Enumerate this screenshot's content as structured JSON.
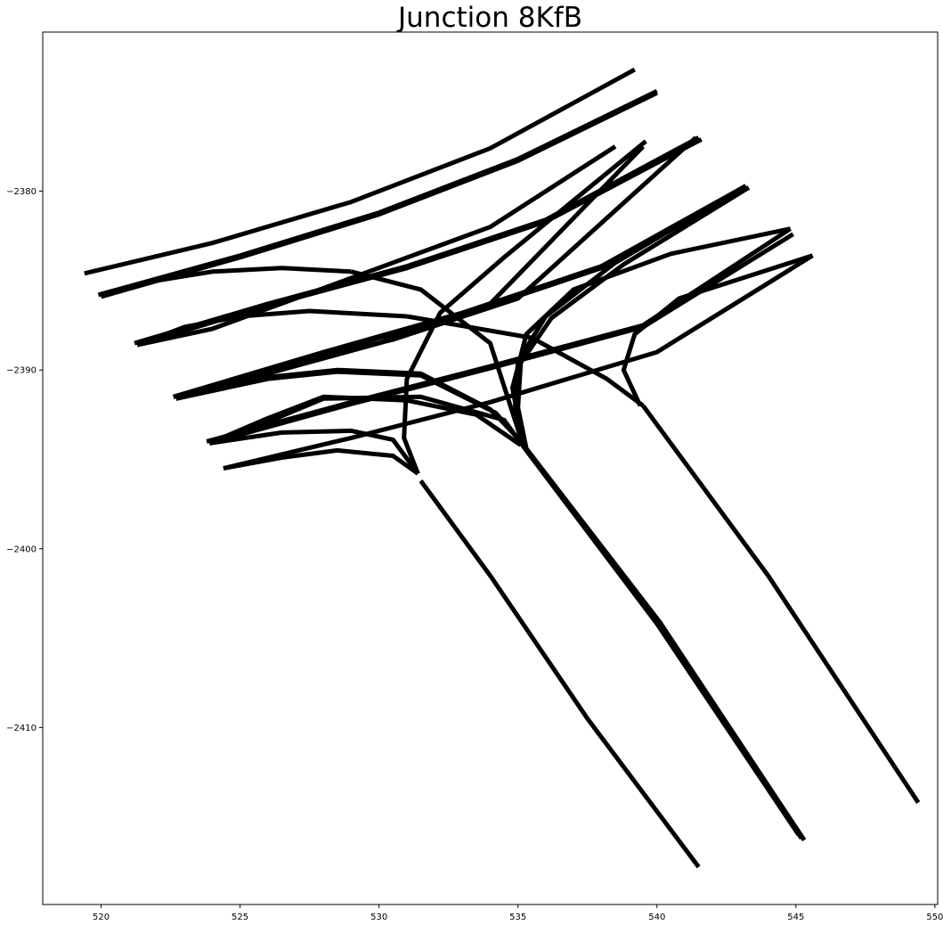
{
  "chart_data": {
    "type": "line",
    "title": "Junction 8KfB",
    "xlabel": "",
    "ylabel": "",
    "xlim": [
      517.9,
      550.1
    ],
    "ylim": [
      -2419.9,
      -2371.1
    ],
    "grid": false,
    "line_color": "#000000",
    "x_ticks": [
      520,
      525,
      530,
      535,
      540,
      545,
      550
    ],
    "x_tick_labels": [
      "520",
      "525",
      "530",
      "535",
      "540",
      "545",
      "550"
    ],
    "y_ticks": [
      -2380,
      -2390,
      -2400,
      -2410
    ],
    "y_tick_labels": [
      "−2380",
      "−2390",
      "−2400",
      "−2410"
    ],
    "series": [
      {
        "x": [
          519.4,
          524.0,
          529.0,
          534.0,
          539.2
        ],
        "y": [
          -2384.6,
          -2382.9,
          -2380.6,
          -2377.6,
          -2373.2
        ]
      },
      {
        "x": [
          519.9,
          525.0,
          530.0,
          535.0,
          540.0
        ],
        "y": [
          -2385.8,
          -2383.6,
          -2381.2,
          -2378.2,
          -2374.4
        ]
      },
      {
        "x": [
          520.0,
          525.0,
          530.0,
          535.0,
          540.0
        ],
        "y": [
          -2385.9,
          -2383.7,
          -2381.3,
          -2378.3,
          -2374.5
        ]
      },
      {
        "x": [
          520.0,
          522.0,
          524.0,
          526.5,
          529.0
        ],
        "y": [
          -2385.9,
          -2385.0,
          -2384.5,
          -2384.3,
          -2384.5
        ]
      },
      {
        "x": [
          529.0,
          531.5,
          534.0,
          535.2
        ],
        "y": [
          -2384.5,
          -2385.5,
          -2388.5,
          -2394.3
        ]
      },
      {
        "x": [
          521.2,
          526.0,
          531.0,
          536.0,
          541.5
        ],
        "y": [
          -2388.5,
          -2386.3,
          -2384.2,
          -2381.6,
          -2377.0
        ]
      },
      {
        "x": [
          521.3,
          526.0,
          531.0,
          536.0,
          541.6
        ],
        "y": [
          -2388.6,
          -2386.4,
          -2384.3,
          -2381.7,
          -2377.1
        ]
      },
      {
        "x": [
          521.3,
          524.0,
          527.0,
          530.5,
          534.0,
          538.5
        ],
        "y": [
          -2388.6,
          -2387.7,
          -2386.0,
          -2384.0,
          -2382.0,
          -2377.5
        ]
      },
      {
        "x": [
          521.3,
          523.0,
          525.0,
          527.5,
          531.0
        ],
        "y": [
          -2388.6,
          -2387.6,
          -2387.0,
          -2386.7,
          -2387.0
        ]
      },
      {
        "x": [
          531.0,
          535.5,
          538.2,
          539.5
        ],
        "y": [
          -2387.0,
          -2388.2,
          -2390.5,
          -2392.0
        ]
      },
      {
        "x": [
          522.6,
          528.0,
          533.0,
          538.0,
          543.2
        ],
        "y": [
          -2391.5,
          -2389.0,
          -2386.8,
          -2384.2,
          -2379.7
        ]
      },
      {
        "x": [
          522.7,
          528.0,
          533.0,
          538.0,
          543.3
        ],
        "y": [
          -2391.6,
          -2389.1,
          -2386.9,
          -2384.3,
          -2379.8
        ]
      },
      {
        "x": [
          522.7,
          526.0,
          530.0,
          534.0,
          539.5
        ],
        "y": [
          -2391.6,
          -2390.2,
          -2388.5,
          -2386.3,
          -2377.5
        ]
      },
      {
        "x": [
          522.6,
          526.0,
          530.5,
          535.0,
          541.4
        ],
        "y": [
          -2391.5,
          -2390.0,
          -2388.3,
          -2386.0,
          -2377.0
        ]
      },
      {
        "x": [
          523.8,
          529.0,
          534.0,
          539.5,
          544.8
        ],
        "y": [
          -2394.0,
          -2391.8,
          -2389.8,
          -2387.5,
          -2382.1
        ]
      },
      {
        "x": [
          523.9,
          529.0,
          534.0,
          539.5,
          544.9
        ],
        "y": [
          -2394.1,
          -2391.9,
          -2389.9,
          -2387.6,
          -2382.4
        ]
      },
      {
        "x": [
          523.9,
          526.0,
          528.0,
          531.0,
          533.5,
          535.1
        ],
        "y": [
          -2394.1,
          -2392.7,
          -2391.5,
          -2391.7,
          -2392.5,
          -2394.2
        ]
      },
      {
        "x": [
          523.9,
          526.0,
          528.0,
          531.5,
          534.5,
          535.2
        ],
        "y": [
          -2394.1,
          -2392.9,
          -2391.6,
          -2391.5,
          -2392.8,
          -2394.3
        ]
      },
      {
        "x": [
          522.7,
          526.0,
          528.5,
          531.5,
          534.0,
          535.3
        ],
        "y": [
          -2391.6,
          -2390.4,
          -2390.0,
          -2390.2,
          -2392.2,
          -2394.3
        ]
      },
      {
        "x": [
          522.7,
          526.0,
          528.5,
          531.5,
          534.2,
          535.3
        ],
        "y": [
          -2391.6,
          -2390.5,
          -2390.1,
          -2390.3,
          -2392.4,
          -2394.4
        ]
      },
      {
        "x": [
          524.4,
          529.0,
          534.0,
          540.0,
          545.6
        ],
        "y": [
          -2395.5,
          -2393.8,
          -2391.8,
          -2389.0,
          -2383.6
        ]
      },
      {
        "x": [
          524.4,
          526.5,
          528.5,
          530.5,
          531.4
        ],
        "y": [
          -2395.5,
          -2394.9,
          -2394.5,
          -2394.8,
          -2395.8
        ]
      },
      {
        "x": [
          523.9,
          526.5,
          529.0,
          530.5,
          531.4
        ],
        "y": [
          -2394.1,
          -2393.5,
          -2393.4,
          -2393.9,
          -2395.8
        ]
      },
      {
        "x": [
          531.4,
          530.9,
          531.0,
          532.2,
          534.5,
          539.6
        ],
        "y": [
          -2395.8,
          -2393.8,
          -2390.5,
          -2386.8,
          -2383.7,
          -2377.2
        ]
      },
      {
        "x": [
          531.5,
          534.0,
          537.5,
          541.5
        ],
        "y": [
          -2396.2,
          -2401.5,
          -2409.5,
          -2417.8
        ]
      },
      {
        "x": [
          535.2,
          534.9,
          535.0,
          536.0,
          538.5,
          543.2
        ],
        "y": [
          -2394.3,
          -2392.0,
          -2389.5,
          -2387.0,
          -2384.0,
          -2379.7
        ]
      },
      {
        "x": [
          535.3,
          535.0,
          535.1,
          536.2,
          538.8,
          543.3
        ],
        "y": [
          -2394.4,
          -2392.1,
          -2389.6,
          -2387.1,
          -2384.1,
          -2379.8
        ]
      },
      {
        "x": [
          535.2,
          534.8,
          535.3,
          537.0,
          540.5,
          544.8
        ],
        "y": [
          -2394.3,
          -2391.0,
          -2388.0,
          -2385.5,
          -2383.5,
          -2382.1
        ]
      },
      {
        "x": [
          535.2,
          540.0,
          545.2
        ],
        "y": [
          -2394.3,
          -2404.0,
          -2416.2
        ]
      },
      {
        "x": [
          535.3,
          540.1,
          545.3
        ],
        "y": [
          -2394.4,
          -2404.1,
          -2416.3
        ]
      },
      {
        "x": [
          535.2,
          540.0,
          545.1
        ],
        "y": [
          -2394.3,
          -2404.2,
          -2416.0
        ]
      },
      {
        "x": [
          539.4,
          538.8,
          539.2,
          540.8,
          545.6
        ],
        "y": [
          -2392.0,
          -2390.0,
          -2388.0,
          -2386.0,
          -2383.6
        ]
      },
      {
        "x": [
          539.5,
          544.0,
          549.4
        ],
        "y": [
          -2392.0,
          -2401.5,
          -2414.2
        ]
      }
    ]
  }
}
